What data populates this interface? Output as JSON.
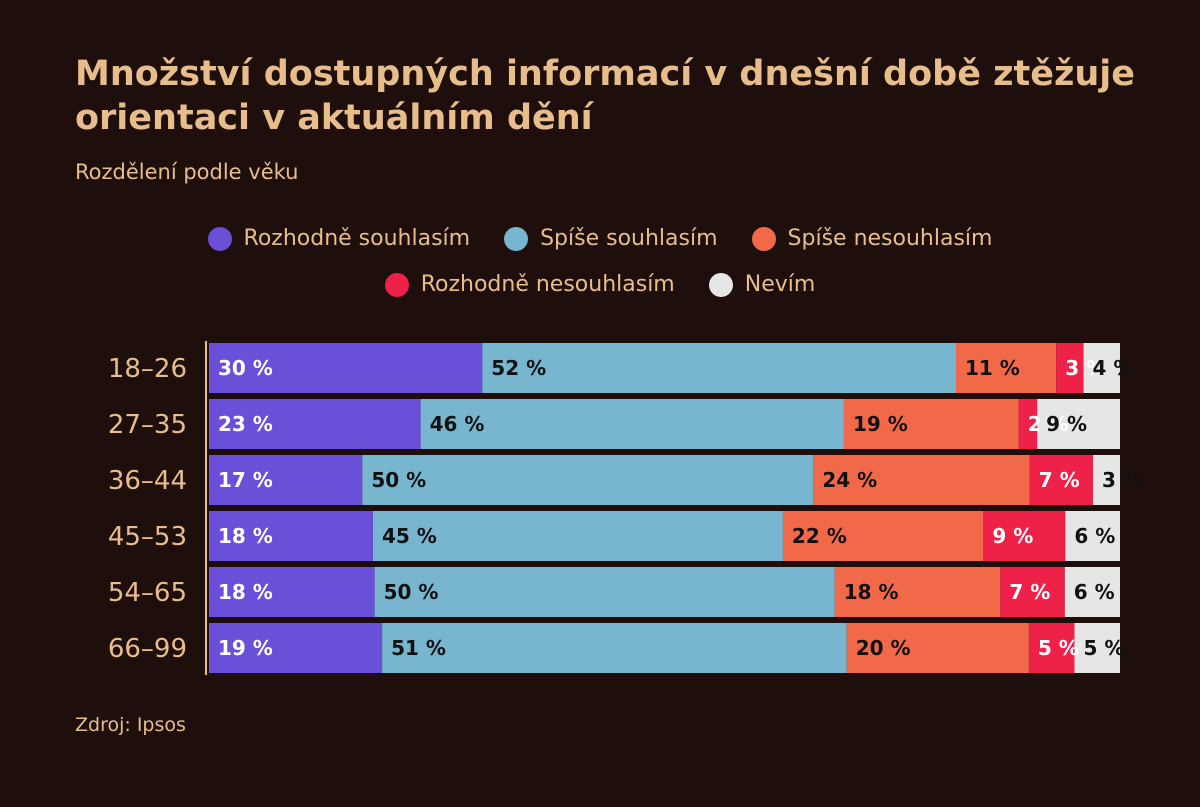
{
  "title": "Množství dostupných informací v dnešní době ztěžuje orientaci v aktuálním dění",
  "subtitle": "Rozdělení podle věku",
  "source": "Zdroj: Ipsos",
  "chart_data": {
    "type": "bar",
    "orientation": "horizontal",
    "stacked": true,
    "unit": "%",
    "categories": [
      "18–26",
      "27–35",
      "36–44",
      "45–53",
      "54–65",
      "66–99"
    ],
    "series": [
      {
        "name": "Rozhodně souhlasím",
        "color": "#6a4fd8",
        "label_color": "#ffffff",
        "values": [
          30,
          23,
          17,
          18,
          18,
          19
        ]
      },
      {
        "name": "Spíše souhlasím",
        "color": "#78b6cf",
        "label_color": "#111111",
        "values": [
          52,
          46,
          50,
          45,
          50,
          51
        ]
      },
      {
        "name": "Spíše nesouhlasím",
        "color": "#f2694a",
        "label_color": "#111111",
        "values": [
          11,
          19,
          24,
          22,
          18,
          20
        ]
      },
      {
        "name": "Rozhodně nesouhlasím",
        "color": "#ee2249",
        "label_color": "#ffffff",
        "values": [
          3,
          2,
          7,
          9,
          7,
          5
        ]
      },
      {
        "name": "Nevím",
        "color": "#e6e6e6",
        "label_color": "#111111",
        "values": [
          4,
          9,
          3,
          6,
          6,
          5
        ]
      }
    ],
    "legend_position": "top",
    "grid": false,
    "axis_color": "#e8bd8c"
  }
}
